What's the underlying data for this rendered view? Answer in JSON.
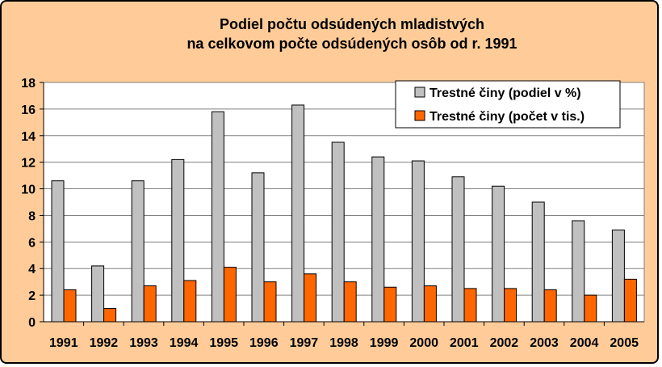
{
  "chart_data": {
    "type": "bar",
    "title_line1": "Podiel počtu odsúdených mladistvých",
    "title_line2": "na celkovom počte odsúdených osôb od r. 1991",
    "xlabel": "",
    "ylabel": "",
    "categories": [
      "1991",
      "1992",
      "1993",
      "1994",
      "1995",
      "1996",
      "1997",
      "1998",
      "1999",
      "2000",
      "2001",
      "2002",
      "2003",
      "2004",
      "2005"
    ],
    "series": [
      {
        "name": "Trestné činy (podiel v %)",
        "color": "#c0c0c0",
        "values": [
          10.6,
          4.2,
          10.6,
          12.2,
          15.8,
          11.2,
          16.3,
          13.5,
          12.4,
          12.1,
          10.9,
          10.2,
          9.0,
          7.6,
          6.9
        ]
      },
      {
        "name": "Trestné činy (počet v tis.)",
        "color": "#ff6600",
        "values": [
          2.4,
          1.0,
          2.7,
          3.1,
          4.1,
          3.0,
          3.6,
          3.0,
          2.6,
          2.7,
          2.5,
          2.5,
          2.4,
          2.0,
          3.2
        ]
      }
    ],
    "ylim": [
      0,
      18
    ],
    "yticks": [
      0,
      2,
      4,
      6,
      8,
      10,
      12,
      14,
      16,
      18
    ],
    "grid": true,
    "legend_position": "top-right",
    "frame_background": "#ffcc99",
    "plot_background": "#ffffff"
  }
}
